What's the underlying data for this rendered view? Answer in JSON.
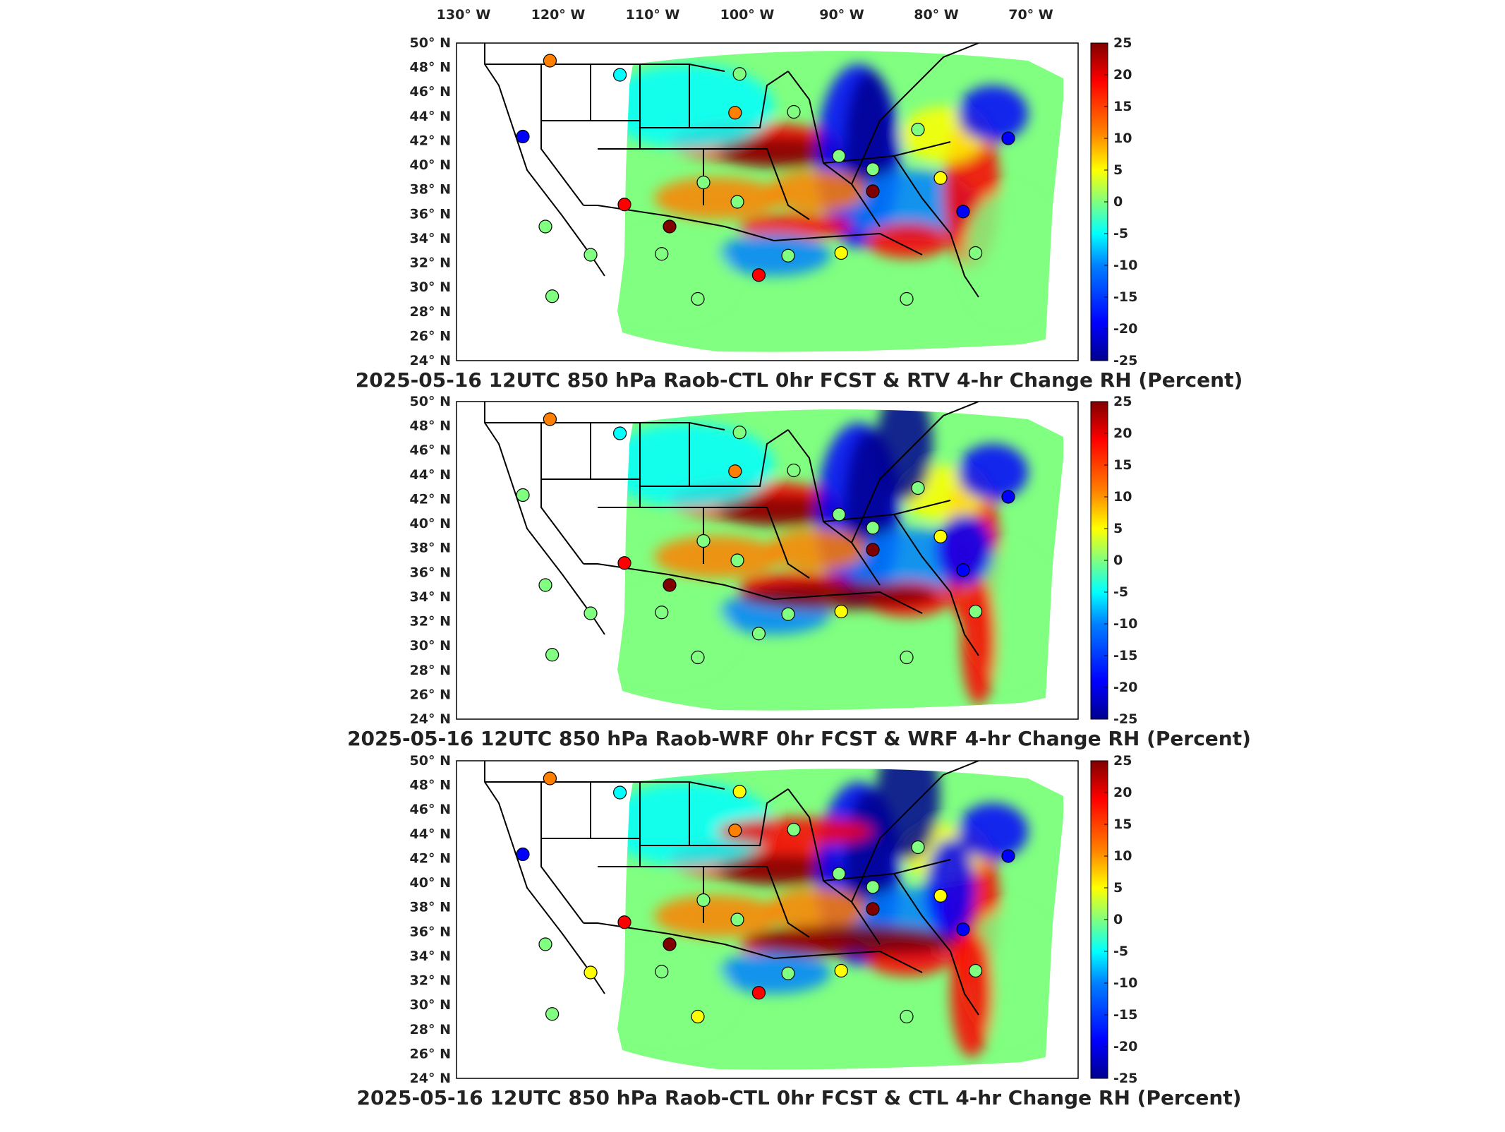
{
  "longitude_labels": [
    "130° W",
    "120° W",
    "110° W",
    "100° W",
    "90° W",
    "80° W",
    "70° W"
  ],
  "latitude_labels": [
    "50° N",
    "48° N",
    "46° N",
    "44° N",
    "42° N",
    "40° N",
    "38° N",
    "36° N",
    "34° N",
    "32° N",
    "30° N",
    "28° N",
    "26° N",
    "24° N"
  ],
  "colorbar": {
    "ticks": [
      "25",
      "20",
      "15",
      "10",
      "5",
      "0",
      "-5",
      "-10",
      "-15",
      "-20",
      "-25"
    ],
    "range": [
      -25,
      25
    ],
    "colormap": "jet",
    "colors": [
      "#00008f",
      "#0000ff",
      "#0080ff",
      "#00ffff",
      "#80ff80",
      "#ffff00",
      "#ff8000",
      "#ff0000",
      "#800000"
    ]
  },
  "panels": [
    {
      "title": "2025-05-16 12UTC 850 hPa Raob-CTL 0hr FCST & RTV 4-hr Change RH (Percent)"
    },
    {
      "title": "2025-05-16 12UTC 850 hPa Raob-WRF 0hr FCST & WRF 4-hr Change RH (Percent)"
    },
    {
      "title": "2025-05-16 12UTC 850 hPa Raob-CTL 0hr FCST & CTL 4-hr Change RH (Percent)"
    }
  ]
}
